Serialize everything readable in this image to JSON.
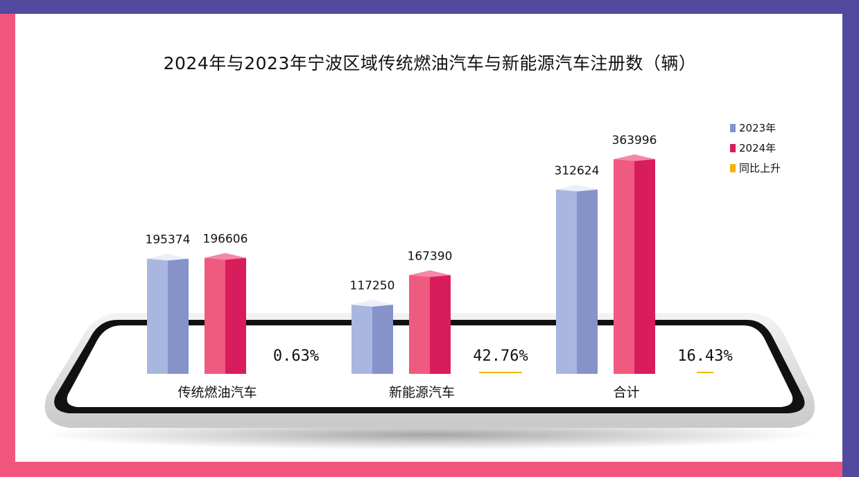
{
  "title": "2024年与2023年宁波区域传统燃油汽车与新能源汽车注册数（辆）",
  "colors": {
    "frame_top": "#524a9f",
    "frame_side": "#f0567d"
  },
  "chart_data": {
    "type": "bar",
    "title": "2024年与2023年宁波区域传统燃油汽车与新能源汽车注册数（辆）",
    "categories": [
      "传统燃油汽车",
      "新能源汽车",
      "合计"
    ],
    "series": [
      {
        "name": "2023年",
        "values": [
          195374,
          117250,
          312624
        ],
        "value_labels": [
          "195374",
          "117250",
          "312624"
        ],
        "color_front": "#a9b6df",
        "color_side": "#8693c9",
        "color_top": "#eceef9"
      },
      {
        "name": "2024年",
        "values": [
          196606,
          167390,
          363996
        ],
        "value_labels": [
          "196606",
          "167390",
          "363996"
        ],
        "color_front": "#ef5a7f",
        "color_side": "#d91c5c",
        "color_top": "#f488a6"
      },
      {
        "name": "同比上升",
        "values": [
          0.63,
          42.76,
          16.43
        ],
        "value_labels": [
          "0.63%",
          "42.76%",
          "16.43%"
        ],
        "color": "#f0b400"
      }
    ],
    "legend": {
      "position": "top-right"
    },
    "grid": false
  }
}
